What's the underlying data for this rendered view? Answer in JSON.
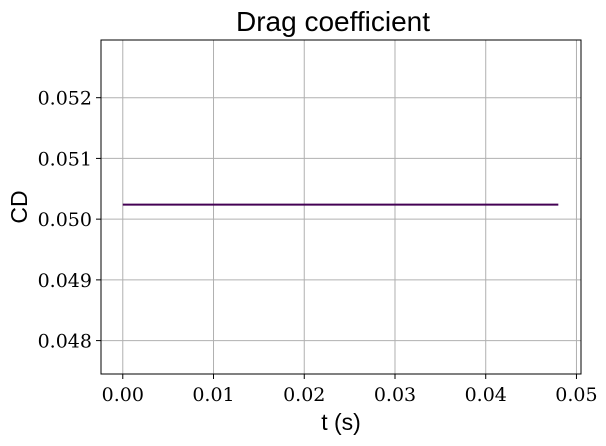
{
  "chart_data": {
    "type": "line",
    "title": "Drag coefficient",
    "xlabel": "t (s)",
    "ylabel": "CD",
    "xlim": [
      -0.0024,
      0.0505
    ],
    "ylim": [
      0.04745,
      0.05295
    ],
    "xticks": [
      0.0,
      0.01,
      0.02,
      0.03,
      0.04,
      0.05
    ],
    "xtick_labels": [
      "0.00",
      "0.01",
      "0.02",
      "0.03",
      "0.04",
      "0.05"
    ],
    "yticks": [
      0.048,
      0.049,
      0.05,
      0.051,
      0.052
    ],
    "ytick_labels": [
      "0.048",
      "0.049",
      "0.050",
      "0.051",
      "0.052"
    ],
    "grid": true,
    "series": [
      {
        "color": "#440154",
        "x": [
          0.0,
          0.048
        ],
        "y": [
          0.05024,
          0.05024
        ]
      }
    ]
  }
}
